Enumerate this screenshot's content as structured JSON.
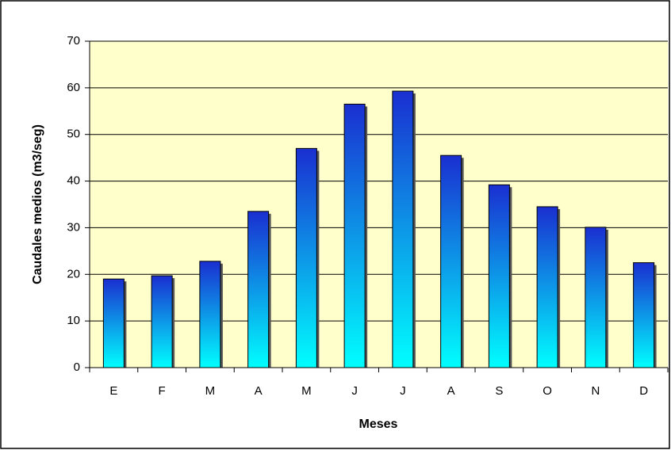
{
  "chart_data": {
    "type": "bar",
    "y_label": "Caudales medios (m3/seg)",
    "x_label": "Meses",
    "categories": [
      "E",
      "F",
      "M",
      "A",
      "M",
      "J",
      "J",
      "A",
      "S",
      "O",
      "N",
      "D"
    ],
    "values": [
      19,
      19.7,
      22.8,
      33.5,
      47,
      56.5,
      59.3,
      45.5,
      39.2,
      34.5,
      30.1,
      22.5
    ],
    "gradient": [
      "#1a2fd0",
      "#00ffff"
    ],
    "plot_background": "#ffffcc",
    "ylim": [
      0,
      70
    ],
    "yticks": [
      0,
      10,
      20,
      30,
      40,
      50,
      60,
      70
    ],
    "grid": true
  }
}
